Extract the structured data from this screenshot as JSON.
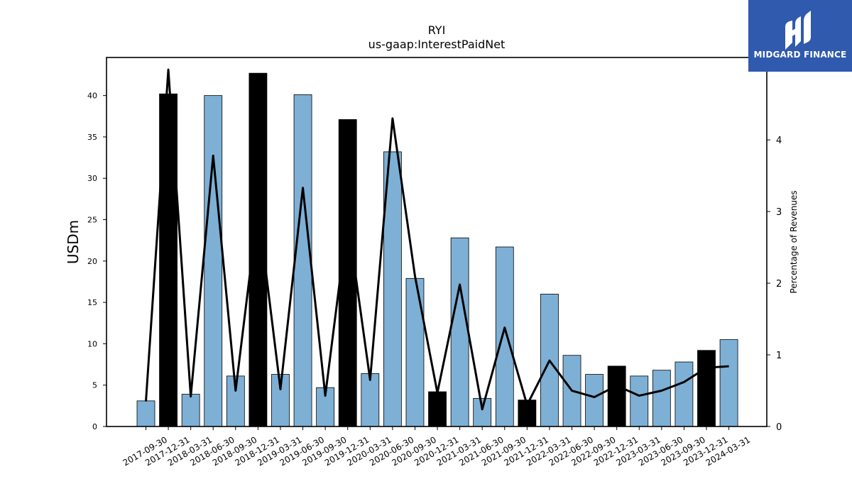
{
  "chart_data": {
    "type": "bar",
    "title": "RYI",
    "subtitle": "us-gaap:InterestPaidNet",
    "ylabel": "USDm",
    "y2label": "Percentage of Revenues",
    "ylim": [
      0,
      44.6
    ],
    "y2lim": [
      0,
      5.15
    ],
    "yticks": [
      0,
      5,
      10,
      15,
      20,
      25,
      30,
      35,
      40
    ],
    "y2ticks": [
      0,
      1,
      2,
      3,
      4
    ],
    "categories": [
      "2017-09-30",
      "2017-12-31",
      "2018-03-31",
      "2018-06-30",
      "2018-09-30",
      "2018-12-31",
      "2019-03-31",
      "2019-06-30",
      "2019-09-30",
      "2019-12-31",
      "2020-03-31",
      "2020-06-30",
      "2020-09-30",
      "2020-12-31",
      "2021-03-31",
      "2021-06-30",
      "2021-09-30",
      "2021-12-31",
      "2022-03-31",
      "2022-06-30",
      "2022-09-30",
      "2022-12-31",
      "2023-03-31",
      "2023-06-30",
      "2023-09-30",
      "2023-12-31",
      "2024-03-31"
    ],
    "series": [
      {
        "type": "bar",
        "values": [
          3.1,
          40.2,
          3.9,
          40.0,
          6.1,
          42.7,
          6.3,
          40.1,
          4.7,
          37.1,
          6.4,
          33.2,
          17.9,
          4.2,
          22.8,
          3.4,
          21.7,
          3.2,
          16.0,
          8.6,
          6.3,
          7.3,
          6.1,
          6.8,
          7.8,
          9.2,
          10.5
        ],
        "highlight": [
          false,
          true,
          false,
          false,
          false,
          true,
          false,
          false,
          false,
          true,
          false,
          false,
          false,
          true,
          false,
          false,
          false,
          true,
          false,
          false,
          false,
          true,
          false,
          false,
          false,
          true,
          false
        ],
        "color": "#7eb0d5",
        "highlight_color": "#000000"
      },
      {
        "type": "line",
        "axis": "right",
        "values": [
          0.35,
          4.98,
          0.42,
          3.78,
          0.5,
          3.05,
          0.52,
          3.33,
          0.43,
          2.9,
          0.65,
          4.3,
          2.1,
          0.47,
          1.98,
          0.24,
          1.38,
          0.3,
          0.92,
          0.5,
          0.41,
          0.57,
          0.43,
          0.5,
          0.62,
          0.82,
          0.84
        ],
        "color": "#000000"
      }
    ],
    "grid": false,
    "legend": "none"
  },
  "logo": {
    "text": "MIDGARD FINANCE",
    "color": "#2f5aad"
  }
}
